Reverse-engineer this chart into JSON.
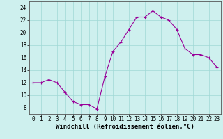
{
  "hours": [
    0,
    1,
    2,
    3,
    4,
    5,
    6,
    7,
    8,
    9,
    10,
    11,
    12,
    13,
    14,
    15,
    16,
    17,
    18,
    19,
    20,
    21,
    22,
    23
  ],
  "values": [
    12.0,
    12.0,
    12.5,
    12.0,
    10.5,
    9.0,
    8.5,
    8.5,
    7.8,
    13.0,
    17.0,
    18.5,
    20.5,
    22.5,
    22.5,
    23.5,
    22.5,
    22.0,
    20.5,
    17.5,
    16.5,
    16.5,
    16.0,
    14.5
  ],
  "line_color": "#990099",
  "marker": "+",
  "markersize": 3,
  "linewidth": 0.8,
  "xlabel": "Windchill (Refroidissement éolien,°C)",
  "xlabel_fontsize": 6.5,
  "bg_color": "#cef0ee",
  "grid_color": "#a0d8d5",
  "ylim": [
    7,
    25
  ],
  "xlim": [
    -0.5,
    23.5
  ],
  "yticks": [
    8,
    10,
    12,
    14,
    16,
    18,
    20,
    22,
    24
  ],
  "xticks": [
    0,
    1,
    2,
    3,
    4,
    5,
    6,
    7,
    8,
    9,
    10,
    11,
    12,
    13,
    14,
    15,
    16,
    17,
    18,
    19,
    20,
    21,
    22,
    23
  ],
  "tick_fontsize": 5.5,
  "spine_color": "#555555",
  "markeredgewidth": 0.8
}
